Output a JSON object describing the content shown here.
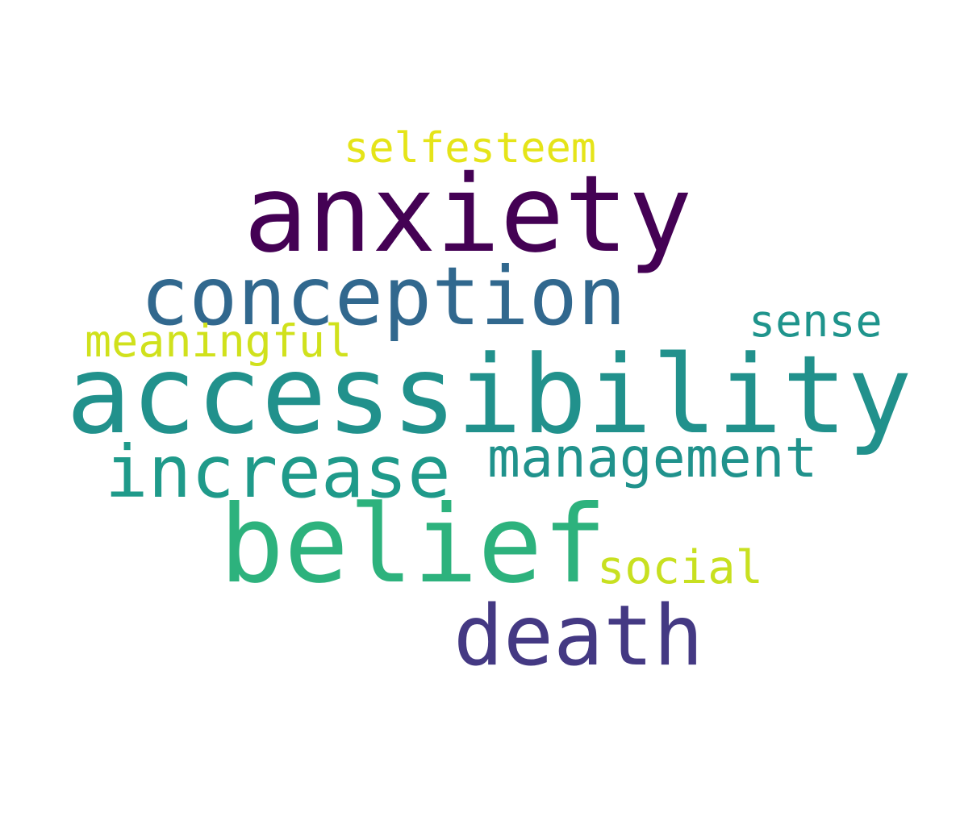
{
  "words": {
    "accessibility": {
      "text": "accessibility",
      "color": "#21918c"
    },
    "anxiety": {
      "text": "anxiety",
      "color": "#440154"
    },
    "belief": {
      "text": "belief",
      "color": "#2db27d"
    },
    "conception": {
      "text": "conception",
      "color": "#31688e"
    },
    "death": {
      "text": "death",
      "color": "#443983"
    },
    "increase": {
      "text": "increase",
      "color": "#1f9a8a"
    },
    "management": {
      "text": "management",
      "color": "#20928c"
    },
    "sense": {
      "text": "sense",
      "color": "#1f948c"
    },
    "meaningful": {
      "text": "meaningful",
      "color": "#d0e11c"
    },
    "selfesteem": {
      "text": "selfesteem",
      "color": "#e5e419"
    },
    "social": {
      "text": "social",
      "color": "#c8e020"
    }
  }
}
